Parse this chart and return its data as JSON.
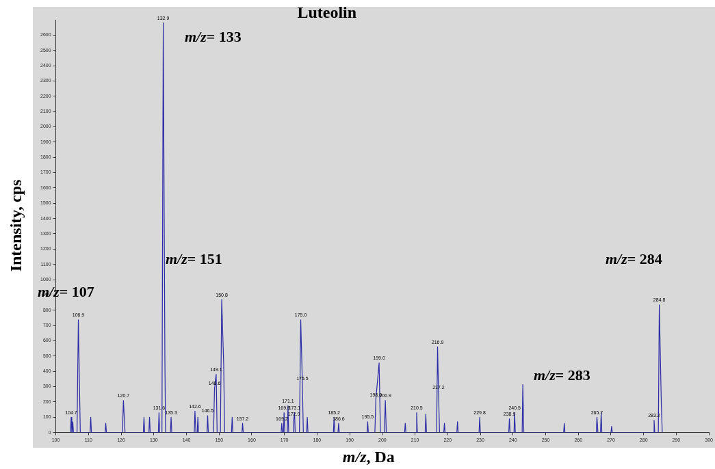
{
  "chart_data": {
    "type": "line",
    "title": "Luteolin",
    "xlabel": "m/z, Da",
    "ylabel": "Intensity, cps",
    "xlim": [
      100,
      300
    ],
    "xticks": [
      100,
      110,
      120,
      130,
      140,
      150,
      160,
      170,
      180,
      190,
      200,
      210,
      220,
      230,
      240,
      250,
      260,
      270,
      280,
      290,
      300
    ],
    "ylim": [
      0,
      2700
    ],
    "yticks": [
      0,
      100,
      200,
      300,
      400,
      500,
      600,
      700,
      800,
      900,
      1000,
      1100,
      1200,
      1300,
      1400,
      1500,
      1600,
      1700,
      1800,
      1900,
      2000,
      2100,
      2200,
      2300,
      2400,
      2500,
      2600
    ],
    "grid": false,
    "marker": "none",
    "line_style": "solid",
    "series": [
      {
        "color": "#2b2ba6",
        "x": [
          104.5,
          104.7,
          104.9,
          105.0,
          105.2,
          105.4,
          106.5,
          106.9,
          107.5,
          110.5,
          110.7,
          110.9,
          115.1,
          115.3,
          115.5,
          120.4,
          120.7,
          121.2,
          126.8,
          127.0,
          127.2,
          128.5,
          128.7,
          128.9,
          131.4,
          131.6,
          131.8,
          132.5,
          132.9,
          133.4,
          133.6,
          135.1,
          135.3,
          135.5,
          142.4,
          142.6,
          142.9,
          143.3,
          143.5,
          143.7,
          146.3,
          146.5,
          146.7,
          148.3,
          148.6,
          149.1,
          149.4,
          150.4,
          150.8,
          151.4,
          151.7,
          153.8,
          154.0,
          154.2,
          157.0,
          157.2,
          157.4,
          169.0,
          169.2,
          169.4,
          169.7,
          169.9,
          170.1,
          170.9,
          171.1,
          171.3,
          172.7,
          172.9,
          173.1,
          173.3,
          174.6,
          175.0,
          175.5,
          175.8,
          176.8,
          177.0,
          177.2,
          185.0,
          185.2,
          185.4,
          186.4,
          186.6,
          186.8,
          195.3,
          195.5,
          195.7,
          197.7,
          198.0,
          199.0,
          199.4,
          200.6,
          200.9,
          201.2,
          206.8,
          207.0,
          207.2,
          210.3,
          210.5,
          210.7,
          213.1,
          213.3,
          213.5,
          216.6,
          216.9,
          217.2,
          217.5,
          218.8,
          219.0,
          219.2,
          222.8,
          223.0,
          223.2,
          229.6,
          229.8,
          230.0,
          238.7,
          238.9,
          239.1,
          240.3,
          240.5,
          240.7,
          242.8,
          243.0,
          243.3,
          255.5,
          255.7,
          255.9,
          265.5,
          265.7,
          266.0,
          266.8,
          267.0,
          267.2,
          270.0,
          270.2,
          270.4,
          283.0,
          283.2,
          283.4,
          284.5,
          284.8,
          285.4,
          285.7
        ],
        "values": [
          0,
          100,
          0,
          0,
          70,
          0,
          0,
          737,
          0,
          0,
          100,
          0,
          0,
          60,
          0,
          0,
          209,
          0,
          0,
          100,
          0,
          0,
          100,
          0,
          0,
          130,
          0,
          0,
          2680,
          480,
          0,
          0,
          100,
          0,
          0,
          140,
          0,
          0,
          100,
          0,
          0,
          110,
          0,
          0,
          290,
          380,
          0,
          0,
          870,
          450,
          0,
          0,
          100,
          0,
          0,
          60,
          0,
          0,
          60,
          0,
          0,
          130,
          0,
          0,
          175,
          0,
          0,
          90,
          130,
          0,
          0,
          737,
          320,
          0,
          0,
          100,
          0,
          0,
          100,
          0,
          0,
          60,
          0,
          0,
          70,
          0,
          0,
          217,
          455,
          0,
          0,
          210,
          0,
          0,
          60,
          0,
          0,
          130,
          0,
          0,
          120,
          0,
          0,
          560,
          262,
          0,
          0,
          60,
          0,
          0,
          70,
          0,
          0,
          100,
          0,
          0,
          90,
          0,
          0,
          130,
          0,
          0,
          313,
          0,
          0,
          60,
          0,
          0,
          100,
          0,
          0,
          130,
          0,
          0,
          40,
          0,
          0,
          80,
          0,
          0,
          835,
          200,
          0
        ]
      }
    ],
    "annotations": [
      "m/z= 133",
      "m/z= 151",
      "m/z= 107",
      "m/z= 283",
      "m/z= 284",
      {
        "text": "104.7",
        "x": 104.7,
        "y": 100
      },
      {
        "text": "106.9",
        "x": 106.9,
        "y": 737
      },
      {
        "text": "120.7",
        "x": 120.7,
        "y": 209
      },
      {
        "text": "131.6",
        "x": 131.6,
        "y": 130
      },
      {
        "text": "132.9",
        "x": 132.9,
        "y": 2680
      },
      {
        "text": "135.3",
        "x": 135.3,
        "y": 100
      },
      {
        "text": "142.6",
        "x": 142.6,
        "y": 140
      },
      {
        "text": "146.5",
        "x": 146.5,
        "y": 110
      },
      {
        "text": "148.6",
        "x": 148.6,
        "y": 290
      },
      {
        "text": "149.1",
        "x": 149.1,
        "y": 380
      },
      {
        "text": "150.8",
        "x": 150.8,
        "y": 870
      },
      {
        "text": "157.2",
        "x": 157.2,
        "y": 60
      },
      {
        "text": "169.2",
        "x": 169.2,
        "y": 60
      },
      {
        "text": "169.9",
        "x": 169.9,
        "y": 130
      },
      {
        "text": "171.1",
        "x": 171.1,
        "y": 175
      },
      {
        "text": "172.9",
        "x": 172.9,
        "y": 90
      },
      {
        "text": "173.1",
        "x": 173.1,
        "y": 130
      },
      {
        "text": "175.0",
        "x": 175.0,
        "y": 737
      },
      {
        "text": "175.5",
        "x": 175.5,
        "y": 320
      },
      {
        "text": "185.2",
        "x": 185.2,
        "y": 100
      },
      {
        "text": "186.6",
        "x": 186.6,
        "y": 60
      },
      {
        "text": "195.5",
        "x": 195.5,
        "y": 70
      },
      {
        "text": "198.0",
        "x": 198.0,
        "y": 217
      },
      {
        "text": "199.0",
        "x": 199.0,
        "y": 455
      },
      {
        "text": "200.9",
        "x": 200.9,
        "y": 210
      },
      {
        "text": "210.5",
        "x": 210.5,
        "y": 130
      },
      {
        "text": "216.9",
        "x": 216.9,
        "y": 560
      },
      {
        "text": "217.2",
        "x": 217.2,
        "y": 262
      },
      {
        "text": "229.8",
        "x": 229.8,
        "y": 100
      },
      {
        "text": "238.9",
        "x": 238.9,
        "y": 90
      },
      {
        "text": "240.5",
        "x": 240.5,
        "y": 130
      },
      {
        "text": "265.7",
        "x": 265.7,
        "y": 100
      },
      {
        "text": "283.2",
        "x": 283.2,
        "y": 80
      },
      {
        "text": "284.8",
        "x": 284.8,
        "y": 835
      }
    ]
  }
}
